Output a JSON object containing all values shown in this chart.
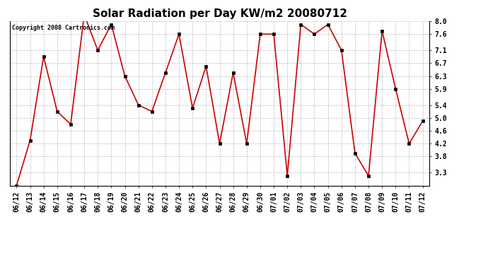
{
  "title": "Solar Radiation per Day KW/m2 20080712",
  "copyright_text": "Copyright 2008 Cartronics.com",
  "dates": [
    "06/12",
    "06/13",
    "06/14",
    "06/15",
    "06/16",
    "06/17",
    "06/18",
    "06/19",
    "06/20",
    "06/21",
    "06/22",
    "06/23",
    "06/24",
    "06/25",
    "06/26",
    "06/27",
    "06/28",
    "06/29",
    "06/30",
    "07/01",
    "07/02",
    "07/03",
    "07/04",
    "07/05",
    "07/06",
    "07/07",
    "07/08",
    "07/09",
    "07/10",
    "07/11",
    "07/12"
  ],
  "values": [
    2.9,
    4.3,
    6.9,
    5.2,
    4.8,
    8.2,
    7.1,
    7.9,
    6.3,
    5.4,
    5.2,
    6.4,
    7.6,
    5.3,
    6.6,
    4.2,
    6.4,
    4.2,
    7.6,
    7.6,
    3.2,
    7.9,
    7.6,
    7.9,
    7.1,
    3.9,
    3.2,
    7.7,
    5.9,
    4.2,
    4.9
  ],
  "line_color": "#cc0000",
  "marker": "s",
  "marker_size": 2.5,
  "marker_color": "#000000",
  "bg_color": "#ffffff",
  "grid_color": "#bbbbbb",
  "ylim": [
    2.9,
    8.0
  ],
  "yticks": [
    3.3,
    3.8,
    4.2,
    4.6,
    5.0,
    5.4,
    5.9,
    6.3,
    6.7,
    7.1,
    7.6,
    8.0
  ],
  "title_fontsize": 11,
  "tick_fontsize": 7,
  "copyright_fontsize": 6,
  "figwidth": 6.9,
  "figheight": 3.75,
  "dpi": 100
}
